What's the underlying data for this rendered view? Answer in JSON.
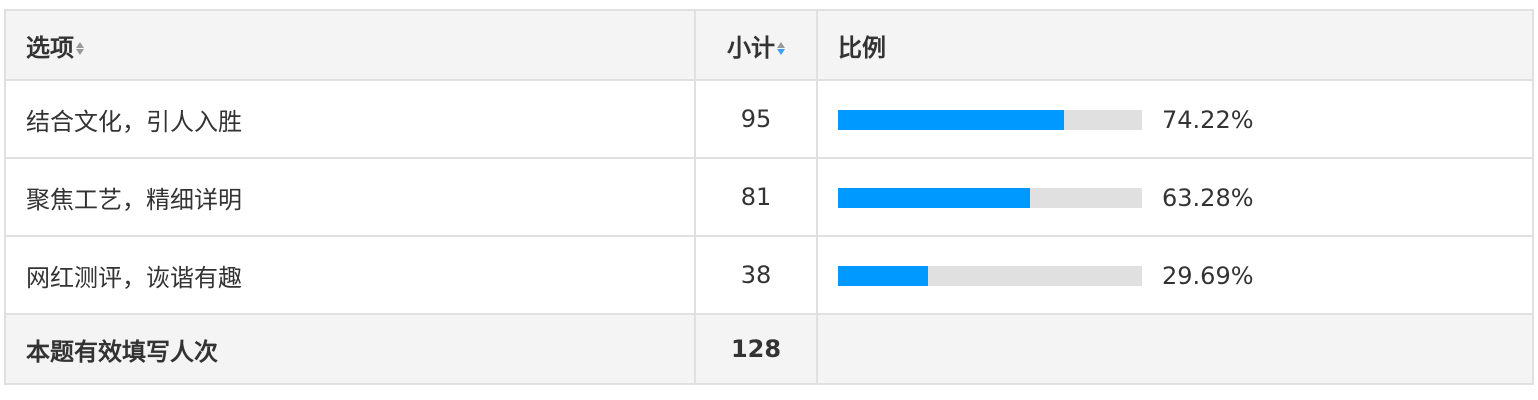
{
  "header": {
    "option": "选项",
    "count": "小计",
    "ratio": "比例",
    "sort_active": "count"
  },
  "rows": [
    {
      "option": "结合文化，引人入胜",
      "count": "95",
      "percent": "74.22%",
      "value": 74.22
    },
    {
      "option": "聚焦工艺，精细详明",
      "count": "81",
      "percent": "63.28%",
      "value": 63.28
    },
    {
      "option": "网红测评，诙谐有趣",
      "count": "38",
      "percent": "29.69%",
      "value": 29.69
    }
  ],
  "footer": {
    "label": "本题有效填写人次",
    "total": "128"
  },
  "colors": {
    "bar_fill": "#0099ff",
    "bar_track": "#e0e0e0",
    "sort_active": "#3aa0f5"
  }
}
